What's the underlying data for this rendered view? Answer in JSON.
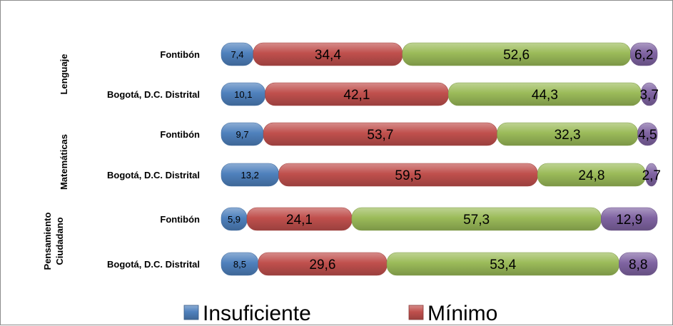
{
  "chart_data": {
    "type": "bar",
    "orientation": "horizontal",
    "stacked": "percent",
    "groups": [
      {
        "name": "Lenguaje",
        "categories": [
          "Fontibón",
          "Bogotá, D.C. Distrital"
        ]
      },
      {
        "name": "Matemáticas",
        "categories": [
          "Fontibón",
          "Bogotá, D.C. Distrital"
        ]
      },
      {
        "name": "Pensamiento Ciudadano",
        "categories": [
          "Fontibón",
          "Bogotá, D.C. Distrital"
        ]
      }
    ],
    "series": [
      {
        "name": "Insuficiente",
        "color": "#4f81bd",
        "values": [
          7.4,
          10.1,
          9.7,
          13.2,
          5.9,
          8.5
        ],
        "labels": [
          "7,4",
          "10,1",
          "9,7",
          "13,2",
          "5,9",
          "8,5"
        ]
      },
      {
        "name": "Mínimo",
        "color": "#c0504d",
        "values": [
          34.4,
          42.1,
          53.7,
          59.5,
          24.1,
          29.6
        ],
        "labels": [
          "34,4",
          "42,1",
          "53,7",
          "59,5",
          "24,1",
          "29,6"
        ]
      },
      {
        "name": "",
        "color": "#9bbb59",
        "values": [
          52.6,
          44.3,
          32.3,
          24.8,
          57.3,
          53.4
        ],
        "labels": [
          "52,6",
          "44,3",
          "32,3",
          "24,8",
          "57,3",
          "53,4"
        ]
      },
      {
        "name": "",
        "color": "#8064a2",
        "values": [
          6.2,
          3.7,
          4.5,
          2.7,
          12.9,
          8.8
        ],
        "labels": [
          "6,2",
          "3,7",
          "4,5",
          "2,7",
          "12,9",
          "8,8"
        ]
      }
    ],
    "xlim": [
      0,
      100
    ],
    "grid": false,
    "legend": "bottom"
  }
}
